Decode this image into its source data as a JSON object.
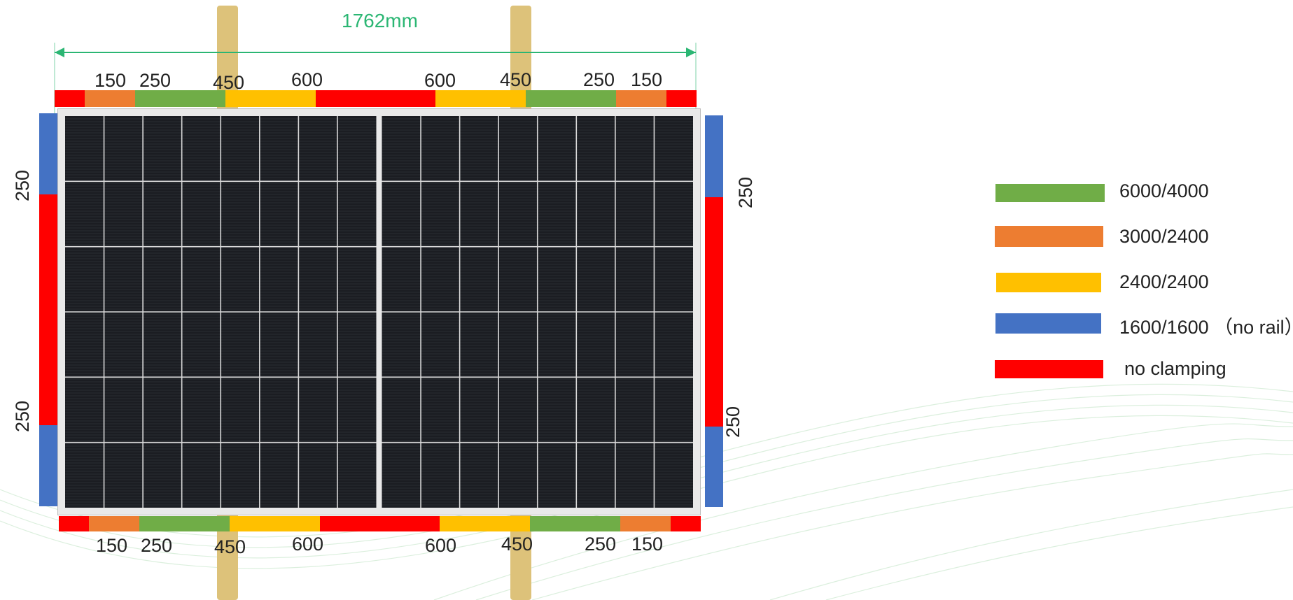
{
  "colors": {
    "green": "#70AD47",
    "orange": "#ED7D31",
    "yellow": "#FFC000",
    "blue": "#4472C4",
    "red": "#FF0000",
    "rail": "#DDC27A",
    "dimension": "#2BB673",
    "panel": "#1B1D22",
    "grid": "#D8D8D8"
  },
  "dimension": {
    "label": "1762mm"
  },
  "top_labels": [
    "150",
    "250",
    "450",
    "600",
    "600",
    "450",
    "250",
    "150"
  ],
  "bottom_labels": [
    "150",
    "250",
    "450",
    "600",
    "600",
    "450",
    "250",
    "150"
  ],
  "left_labels": [
    "250",
    "250"
  ],
  "right_labels": [
    "250",
    "250"
  ],
  "edge_segments": [
    {
      "zone": "red",
      "mm": 150
    },
    {
      "zone": "orange",
      "mm": 250
    },
    {
      "zone": "green",
      "mm": 450
    },
    {
      "zone": "yellow",
      "mm": 450
    },
    {
      "zone": "red",
      "mm": 600
    },
    {
      "zone": "yellow",
      "mm": 450
    },
    {
      "zone": "green",
      "mm": 450
    },
    {
      "zone": "orange",
      "mm": 250
    },
    {
      "zone": "red",
      "mm": 150
    }
  ],
  "legend": [
    {
      "zone": "green",
      "label": "6000/4000"
    },
    {
      "zone": "orange",
      "label": "3000/2400"
    },
    {
      "zone": "yellow",
      "label": "2400/2400"
    },
    {
      "zone": "blue",
      "label": "1600/1600 （no rail）"
    },
    {
      "zone": "red",
      "label": "no clamping"
    }
  ]
}
